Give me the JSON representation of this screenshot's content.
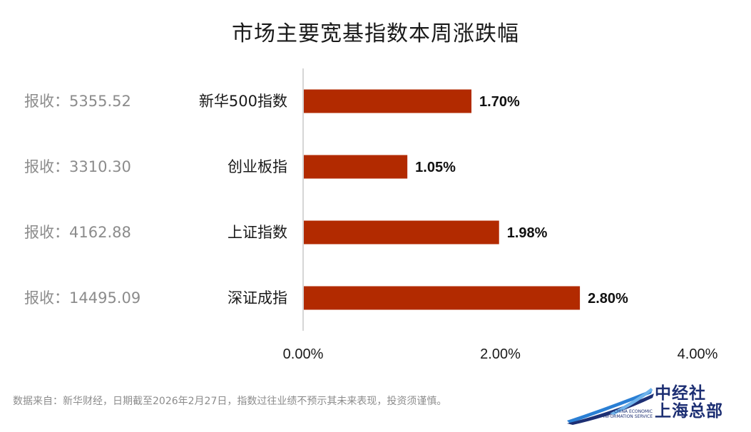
{
  "chart_data": {
    "type": "bar",
    "orientation": "horizontal",
    "title": "市场主要宽基指数本周涨跌幅",
    "categories": [
      "新华500指数",
      "创业板指",
      "上证指数",
      "深证成指"
    ],
    "close_labels": [
      "报收：5355.52",
      "报收：3310.30",
      "报收：4162.88",
      "报收：14495.09"
    ],
    "values": [
      1.7,
      1.05,
      1.98,
      2.8
    ],
    "value_labels": [
      "1.70%",
      "1.05%",
      "1.98%",
      "2.80%"
    ],
    "xlim": [
      0,
      4
    ],
    "xticks": [
      "0.00%",
      "2.00%",
      "4.00%"
    ],
    "bar_color": "#b22a00",
    "axis_color": "#c8c8c8",
    "grid": false,
    "legend": "none"
  },
  "footnote": "数据来自：新华财经，日期截至2026年2月27日，指数过往业绩不预示其未来表现，投资须谨慎。",
  "logo": {
    "line1": "中经社",
    "line2": "上海总部",
    "sub1": "CHINA ECONOMIC",
    "sub2": "INFORMATION SERVICE",
    "icon": "wave-swoosh-icon"
  }
}
